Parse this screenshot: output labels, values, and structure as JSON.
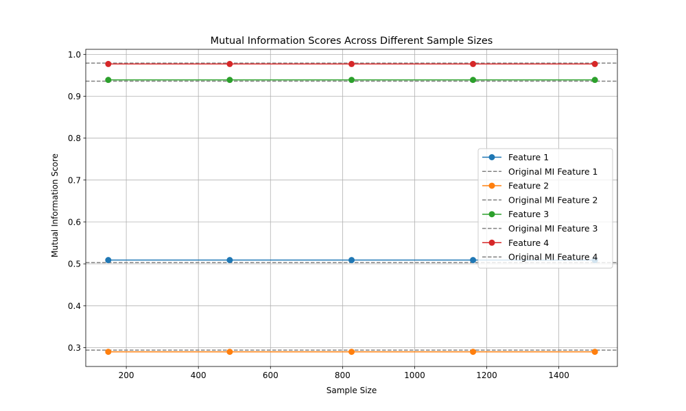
{
  "chart_data": {
    "type": "line",
    "title": "Mutual Information Scores Across Different Sample Sizes",
    "xlabel": "Sample Size",
    "ylabel": "Mutual Information Score",
    "xlim": [
      87.5,
      1562.5
    ],
    "ylim": [
      0.255,
      1.012
    ],
    "xticks": [
      200,
      400,
      600,
      800,
      1000,
      1200,
      1400
    ],
    "yticks": [
      0.3,
      0.4,
      0.5,
      0.6,
      0.7,
      0.8,
      0.9,
      1.0
    ],
    "ytick_labels": [
      "0.3",
      "0.4",
      "0.5",
      "0.6",
      "0.7",
      "0.8",
      "0.9",
      "1.0"
    ],
    "grid": true,
    "legend_position": "center-right",
    "x": [
      150,
      487,
      825,
      1162,
      1500
    ],
    "series": [
      {
        "name": "Feature 1",
        "color": "#1f77b4",
        "values": [
          0.509,
          0.509,
          0.509,
          0.509,
          0.509
        ]
      },
      {
        "name": "Feature 2",
        "color": "#ff7f0e",
        "values": [
          0.29,
          0.29,
          0.29,
          0.29,
          0.29
        ]
      },
      {
        "name": "Feature 3",
        "color": "#2ca02c",
        "values": [
          0.939,
          0.939,
          0.939,
          0.939,
          0.939
        ]
      },
      {
        "name": "Feature 4",
        "color": "#d62728",
        "values": [
          0.977,
          0.977,
          0.977,
          0.977,
          0.977
        ]
      }
    ],
    "reference_lines": [
      {
        "name": "Original MI Feature 1",
        "color": "#808080",
        "style": "dashed",
        "value": 0.503
      },
      {
        "name": "Original MI Feature 2",
        "color": "#808080",
        "style": "dashed",
        "value": 0.294
      },
      {
        "name": "Original MI Feature 3",
        "color": "#808080",
        "style": "dashed",
        "value": 0.936
      },
      {
        "name": "Original MI Feature 4",
        "color": "#808080",
        "style": "dashed",
        "value": 0.979
      }
    ]
  }
}
